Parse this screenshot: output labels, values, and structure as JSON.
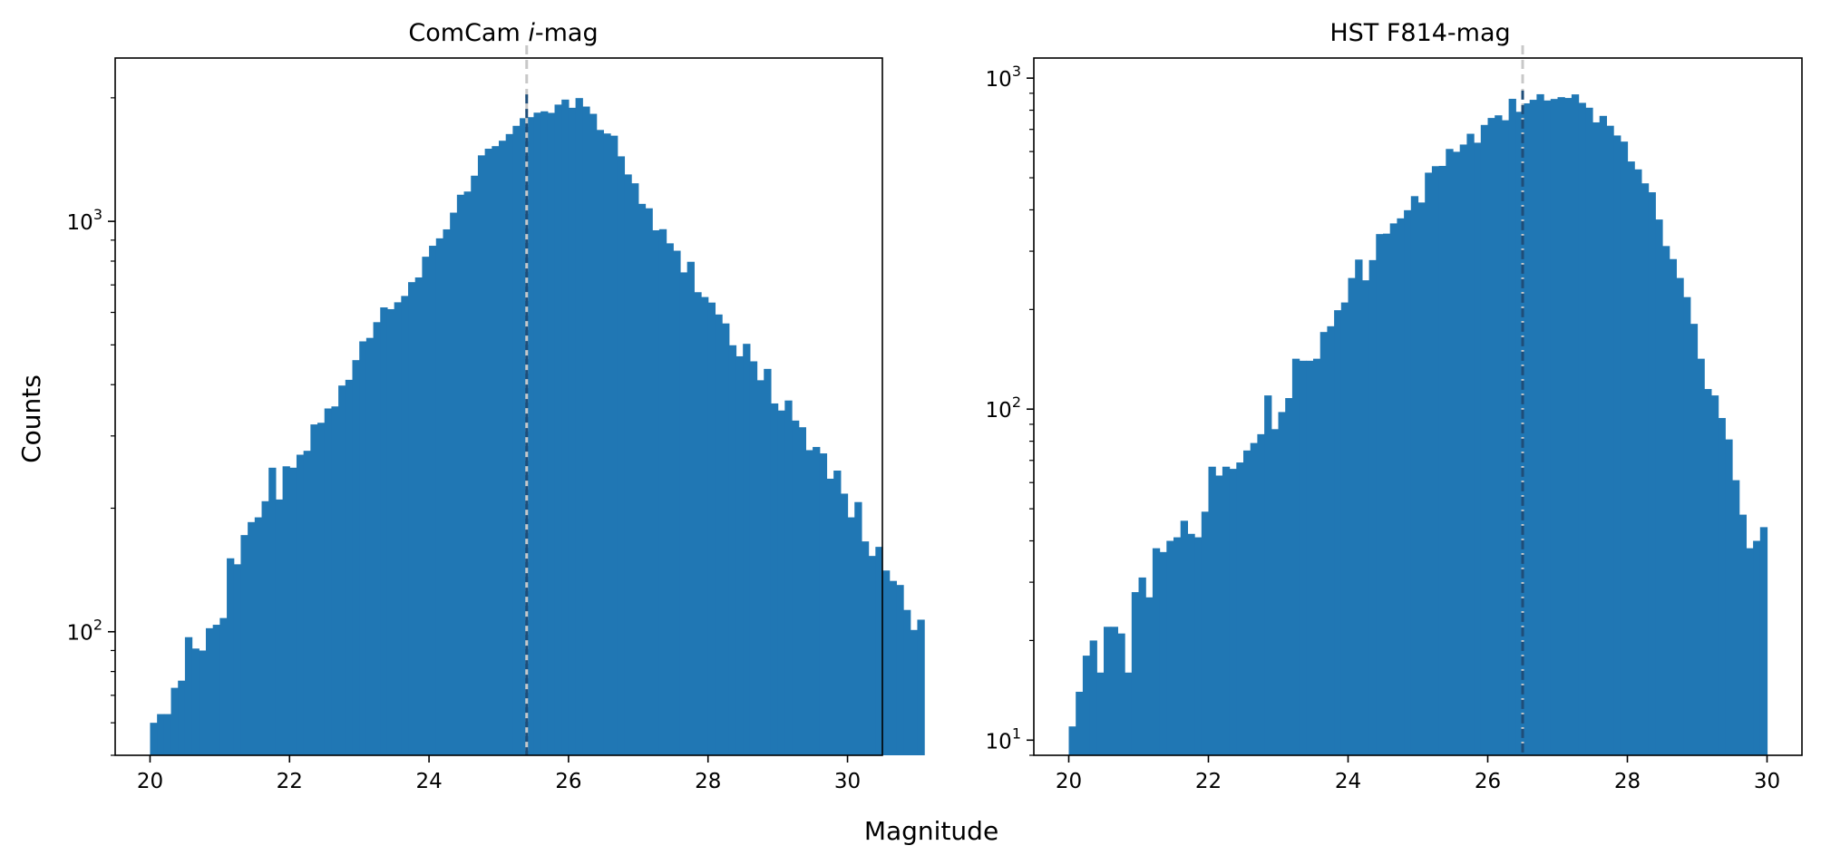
{
  "figure": {
    "shared_xlabel": "Magnitude",
    "shared_ylabel": "Counts"
  },
  "colors": {
    "bars": "#2077b4",
    "marker_line": "#c8c8c8",
    "marker_line_over_bars": "#1f4e79"
  },
  "chart_data": [
    {
      "type": "bar",
      "histogram": true,
      "title_parts": [
        "ComCam ",
        "i",
        "-mag"
      ],
      "xlabel": "Magnitude",
      "ylabel": "Counts",
      "xlim": [
        19.5,
        30.5
      ],
      "ylim": [
        50,
        2500
      ],
      "yscale": "log",
      "grid": false,
      "xticks": [
        "20",
        "22",
        "24",
        "26",
        "28",
        "30"
      ],
      "yticks": [
        {
          "base": "10",
          "exp": "2",
          "value": 100
        },
        {
          "base": "10",
          "exp": "3",
          "value": 1000
        }
      ],
      "bin_start": 20.0,
      "bin_width": 0.1,
      "vertical_line_x": 25.4,
      "values": [
        60,
        63,
        63,
        73,
        76,
        97,
        91,
        90,
        102,
        104,
        108,
        151,
        146,
        172,
        185,
        190,
        208,
        251,
        210,
        253,
        251,
        270,
        276,
        320,
        323,
        350,
        354,
        398,
        411,
        459,
        510,
        520,
        568,
        617,
        611,
        635,
        658,
        711,
        730,
        820,
        872,
        909,
        956,
        1050,
        1161,
        1182,
        1292,
        1448,
        1503,
        1525,
        1572,
        1632,
        1709,
        1784,
        1794,
        1840,
        1854,
        1838,
        1925,
        1980,
        1891,
        1997,
        1904,
        1828,
        1670,
        1637,
        1617,
        1440,
        1301,
        1238,
        1103,
        1076,
        951,
        957,
        884,
        848,
        751,
        797,
        672,
        654,
        634,
        593,
        564,
        499,
        469,
        503,
        456,
        410,
        437,
        360,
        346,
        366,
        327,
        315,
        277,
        282,
        272,
        236,
        247,
        217,
        190,
        207,
        166,
        153,
        161,
        141,
        133,
        130,
        113,
        101,
        107
      ]
    },
    {
      "type": "bar",
      "histogram": true,
      "title_parts": [
        "HST F814-mag"
      ],
      "xlabel": "Magnitude",
      "ylabel": "Counts",
      "xlim": [
        19.5,
        30.5
      ],
      "ylim": [
        9,
        1150
      ],
      "yscale": "log",
      "grid": false,
      "xticks": [
        "20",
        "22",
        "24",
        "26",
        "28",
        "30"
      ],
      "yticks": [
        {
          "base": "10",
          "exp": "1",
          "value": 10
        },
        {
          "base": "10",
          "exp": "2",
          "value": 100
        },
        {
          "base": "10",
          "exp": "3",
          "value": 1000
        }
      ],
      "bin_start": 20.0,
      "bin_width": 0.1,
      "vertical_line_x": 26.5,
      "values": [
        11,
        14,
        18,
        20,
        16,
        22,
        22,
        21,
        16,
        28,
        31,
        27,
        38,
        37,
        40,
        41,
        46,
        42,
        41,
        49,
        67,
        63,
        67,
        66,
        69,
        75,
        79,
        84,
        110,
        87,
        98,
        108,
        142,
        140,
        140,
        142,
        171,
        178,
        199,
        210,
        249,
        283,
        245,
        282,
        338,
        339,
        364,
        377,
        399,
        440,
        421,
        518,
        542,
        543,
        611,
        599,
        630,
        679,
        638,
        722,
        758,
        772,
        746,
        866,
        791,
        839,
        860,
        894,
        856,
        865,
        876,
        871,
        893,
        842,
        814,
        735,
        769,
        718,
        671,
        643,
        560,
        530,
        481,
        452,
        374,
        311,
        284,
        249,
        218,
        181,
        142,
        115,
        110,
        94,
        81,
        61,
        48,
        38,
        40,
        44
      ]
    }
  ]
}
